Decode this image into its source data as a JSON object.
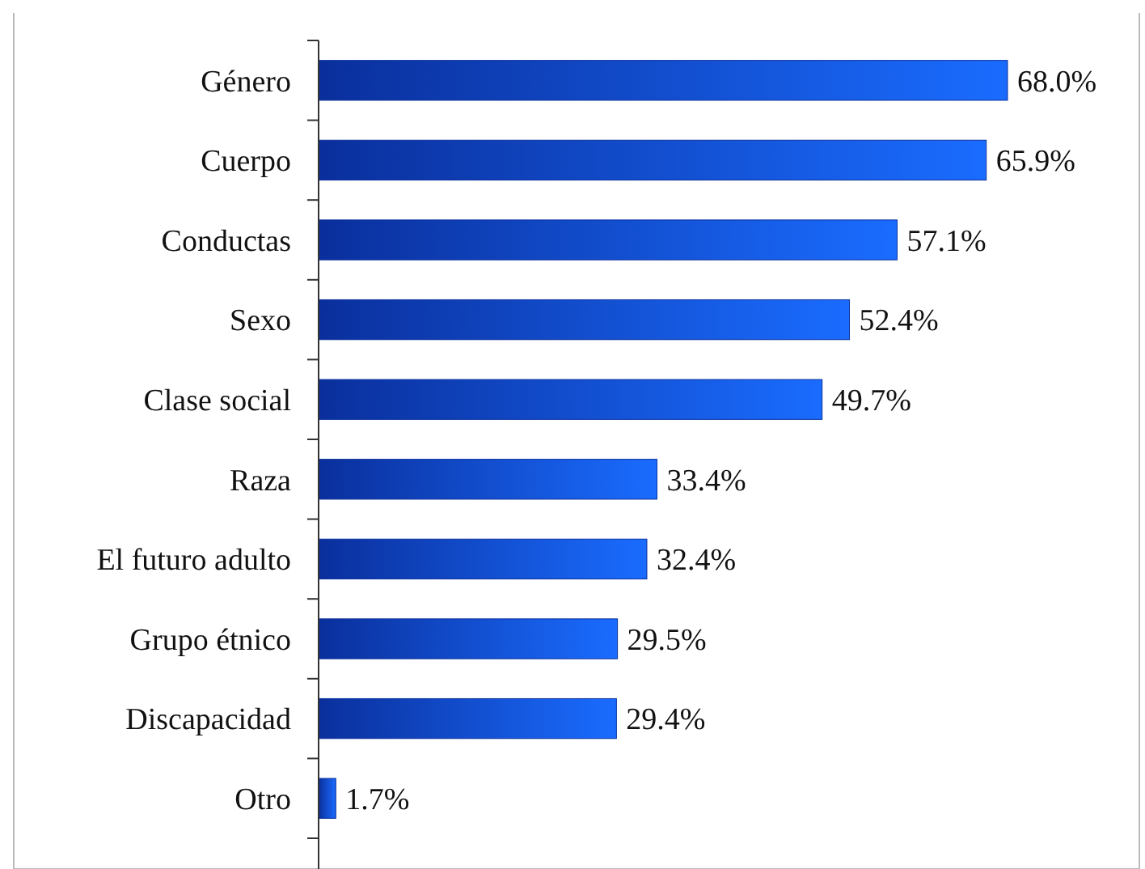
{
  "chart_data": {
    "type": "bar",
    "orientation": "horizontal",
    "categories": [
      "Género",
      "Cuerpo",
      "Conductas",
      "Sexo",
      "Clase social",
      "Raza",
      "El futuro adulto",
      "Grupo étnico",
      "Discapacidad",
      "Otro"
    ],
    "values": [
      68.0,
      65.9,
      57.1,
      52.4,
      49.7,
      33.4,
      32.4,
      29.5,
      29.4,
      1.7
    ],
    "value_labels": [
      "68.0%",
      "65.9%",
      "57.1%",
      "52.4%",
      "49.7%",
      "33.4%",
      "32.4%",
      "29.5%",
      "29.4%",
      "1.7%"
    ],
    "color": "#0a2f9c"
  }
}
